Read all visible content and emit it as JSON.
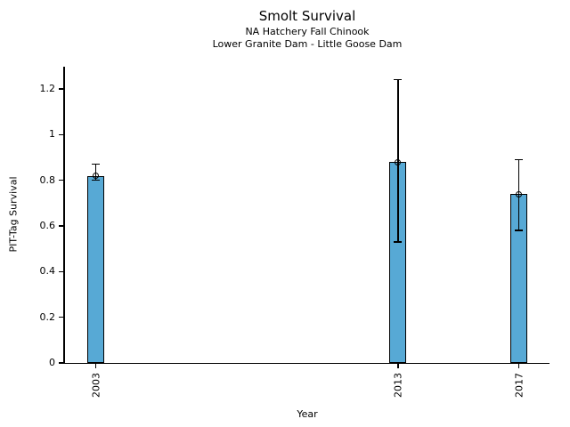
{
  "chart_data": {
    "type": "bar",
    "title": "Smolt Survival",
    "subtitle1": "NA Hatchery Fall Chinook",
    "subtitle2": "Lower Granite Dam - Little Goose Dam",
    "xlabel": "Year",
    "ylabel": "PIT-Tag Survival",
    "categories": [
      "2003",
      "2013",
      "2017"
    ],
    "x": [
      2003,
      2013,
      2017
    ],
    "series": [
      {
        "name": "PIT-Tag Survival",
        "values": [
          0.82,
          0.88,
          0.74
        ],
        "error_low": [
          0.8,
          0.53,
          0.58
        ],
        "error_high": [
          0.87,
          1.24,
          0.89
        ]
      }
    ],
    "ylim": [
      0,
      1.3
    ],
    "xlim": [
      2002,
      2018
    ],
    "yticks": [
      0,
      0.2,
      0.4,
      0.6,
      0.8,
      1,
      1.2
    ],
    "ytick_labels": [
      "0",
      "0.2",
      "0.4",
      "0.6",
      "0.8",
      "1",
      "1.2"
    ],
    "grid": false,
    "legend": null,
    "marker_style": "open-circle",
    "bar_color": "#57a9d5",
    "bar_edge_color": "#000000",
    "error_color": "#000000",
    "text_color": "#000000",
    "background_color": "#ffffff"
  }
}
